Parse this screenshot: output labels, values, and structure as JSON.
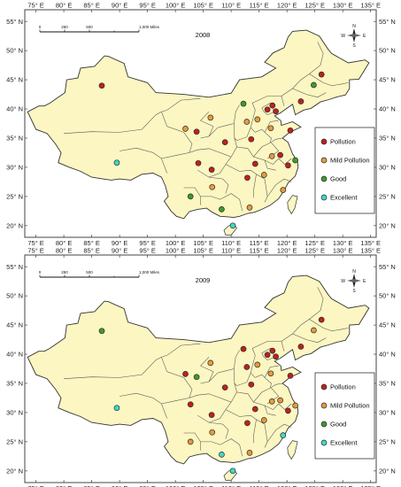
{
  "x_ticks": [
    "75° E",
    "80° E",
    "85° E",
    "90° E",
    "95° E",
    "100° E",
    "105° E",
    "110° E",
    "115° E",
    "120° E",
    "125° E",
    "130° E",
    "135° E"
  ],
  "y_ticks": [
    "55° N",
    "50° N",
    "45° N",
    "40° N",
    "35° N",
    "30° N",
    "25° N",
    "20° N"
  ],
  "scale_bar": {
    "labels": [
      "0",
      "250",
      "500",
      "1,000 Miles"
    ]
  },
  "north_arrow": {
    "n": "N",
    "s": "S",
    "e": "E",
    "w": "W"
  },
  "legend": [
    {
      "key": "pollution",
      "label": "Pollution",
      "color": "#c0201e"
    },
    {
      "key": "mild",
      "label": "Mild Pollution",
      "color": "#e89a3c"
    },
    {
      "key": "good",
      "label": "Good",
      "color": "#3e9b2c"
    },
    {
      "key": "excellent",
      "label": "Excellent",
      "color": "#3fd8c8"
    }
  ],
  "colors": {
    "land": "#fbf6c2",
    "border": "#555555",
    "frame": "#444444",
    "water": "#ffffff"
  },
  "maps": [
    {
      "year": "2008",
      "stations": [
        {
          "lon": 86.8,
          "lat": 44.0,
          "c": "pollution"
        },
        {
          "lon": 89.5,
          "lat": 30.8,
          "c": "excellent"
        },
        {
          "lon": 126.2,
          "lat": 45.9,
          "c": "pollution"
        },
        {
          "lon": 124.8,
          "lat": 44.1,
          "c": "good"
        },
        {
          "lon": 122.5,
          "lat": 41.3,
          "c": "pollution"
        },
        {
          "lon": 117.4,
          "lat": 40.6,
          "c": "pollution"
        },
        {
          "lon": 118.0,
          "lat": 39.6,
          "c": "pollution"
        },
        {
          "lon": 116.5,
          "lat": 39.9,
          "c": "pollution"
        },
        {
          "lon": 112.2,
          "lat": 40.9,
          "c": "good"
        },
        {
          "lon": 114.7,
          "lat": 38.2,
          "c": "mild"
        },
        {
          "lon": 112.8,
          "lat": 37.8,
          "c": "mild"
        },
        {
          "lon": 117.1,
          "lat": 36.7,
          "c": "mild"
        },
        {
          "lon": 120.6,
          "lat": 36.3,
          "c": "pollution"
        },
        {
          "lon": 113.6,
          "lat": 34.8,
          "c": "pollution"
        },
        {
          "lon": 108.9,
          "lat": 34.3,
          "c": "pollution"
        },
        {
          "lon": 103.8,
          "lat": 36.1,
          "c": "pollution"
        },
        {
          "lon": 101.8,
          "lat": 36.6,
          "c": "mild"
        },
        {
          "lon": 106.3,
          "lat": 38.5,
          "c": "mild"
        },
        {
          "lon": 117.3,
          "lat": 31.9,
          "c": "mild"
        },
        {
          "lon": 118.8,
          "lat": 32.1,
          "c": "pollution"
        },
        {
          "lon": 121.5,
          "lat": 31.2,
          "c": "good"
        },
        {
          "lon": 120.2,
          "lat": 30.3,
          "c": "pollution"
        },
        {
          "lon": 114.3,
          "lat": 30.6,
          "c": "pollution"
        },
        {
          "lon": 115.9,
          "lat": 28.7,
          "c": "mild"
        },
        {
          "lon": 112.9,
          "lat": 28.2,
          "c": "pollution"
        },
        {
          "lon": 119.3,
          "lat": 26.1,
          "c": "mild"
        },
        {
          "lon": 113.3,
          "lat": 23.1,
          "c": "mild"
        },
        {
          "lon": 110.3,
          "lat": 20.0,
          "c": "excellent"
        },
        {
          "lon": 108.3,
          "lat": 22.8,
          "c": "good"
        },
        {
          "lon": 106.6,
          "lat": 26.6,
          "c": "mild"
        },
        {
          "lon": 102.7,
          "lat": 25.0,
          "c": "good"
        },
        {
          "lon": 104.1,
          "lat": 30.7,
          "c": "pollution"
        },
        {
          "lon": 106.5,
          "lat": 29.6,
          "c": "pollution"
        }
      ]
    },
    {
      "year": "2009",
      "stations": [
        {
          "lon": 86.8,
          "lat": 44.0,
          "c": "good"
        },
        {
          "lon": 89.5,
          "lat": 30.8,
          "c": "excellent"
        },
        {
          "lon": 126.2,
          "lat": 45.9,
          "c": "pollution"
        },
        {
          "lon": 124.8,
          "lat": 44.1,
          "c": "mild"
        },
        {
          "lon": 122.5,
          "lat": 41.3,
          "c": "pollution"
        },
        {
          "lon": 117.4,
          "lat": 40.6,
          "c": "pollution"
        },
        {
          "lon": 118.0,
          "lat": 39.6,
          "c": "pollution"
        },
        {
          "lon": 116.5,
          "lat": 39.9,
          "c": "pollution"
        },
        {
          "lon": 112.2,
          "lat": 40.9,
          "c": "pollution"
        },
        {
          "lon": 114.7,
          "lat": 38.2,
          "c": "mild"
        },
        {
          "lon": 112.8,
          "lat": 37.8,
          "c": "pollution"
        },
        {
          "lon": 117.1,
          "lat": 36.7,
          "c": "mild"
        },
        {
          "lon": 120.6,
          "lat": 36.3,
          "c": "pollution"
        },
        {
          "lon": 113.6,
          "lat": 34.8,
          "c": "pollution"
        },
        {
          "lon": 108.9,
          "lat": 34.3,
          "c": "pollution"
        },
        {
          "lon": 103.8,
          "lat": 36.1,
          "c": "good"
        },
        {
          "lon": 101.8,
          "lat": 36.6,
          "c": "pollution"
        },
        {
          "lon": 106.3,
          "lat": 38.5,
          "c": "mild"
        },
        {
          "lon": 117.3,
          "lat": 31.9,
          "c": "mild"
        },
        {
          "lon": 118.8,
          "lat": 32.1,
          "c": "mild"
        },
        {
          "lon": 121.5,
          "lat": 31.2,
          "c": "mild"
        },
        {
          "lon": 120.2,
          "lat": 30.3,
          "c": "pollution"
        },
        {
          "lon": 114.3,
          "lat": 30.6,
          "c": "pollution"
        },
        {
          "lon": 115.9,
          "lat": 28.7,
          "c": "mild"
        },
        {
          "lon": 112.9,
          "lat": 28.2,
          "c": "pollution"
        },
        {
          "lon": 119.3,
          "lat": 26.1,
          "c": "excellent"
        },
        {
          "lon": 113.3,
          "lat": 23.1,
          "c": "mild"
        },
        {
          "lon": 110.3,
          "lat": 20.0,
          "c": "excellent"
        },
        {
          "lon": 108.3,
          "lat": 22.8,
          "c": "excellent"
        },
        {
          "lon": 106.6,
          "lat": 26.6,
          "c": "mild"
        },
        {
          "lon": 102.7,
          "lat": 25.0,
          "c": "mild"
        },
        {
          "lon": 102.7,
          "lat": 31.4,
          "c": "pollution"
        },
        {
          "lon": 106.5,
          "lat": 29.6,
          "c": "pollution"
        }
      ]
    }
  ]
}
